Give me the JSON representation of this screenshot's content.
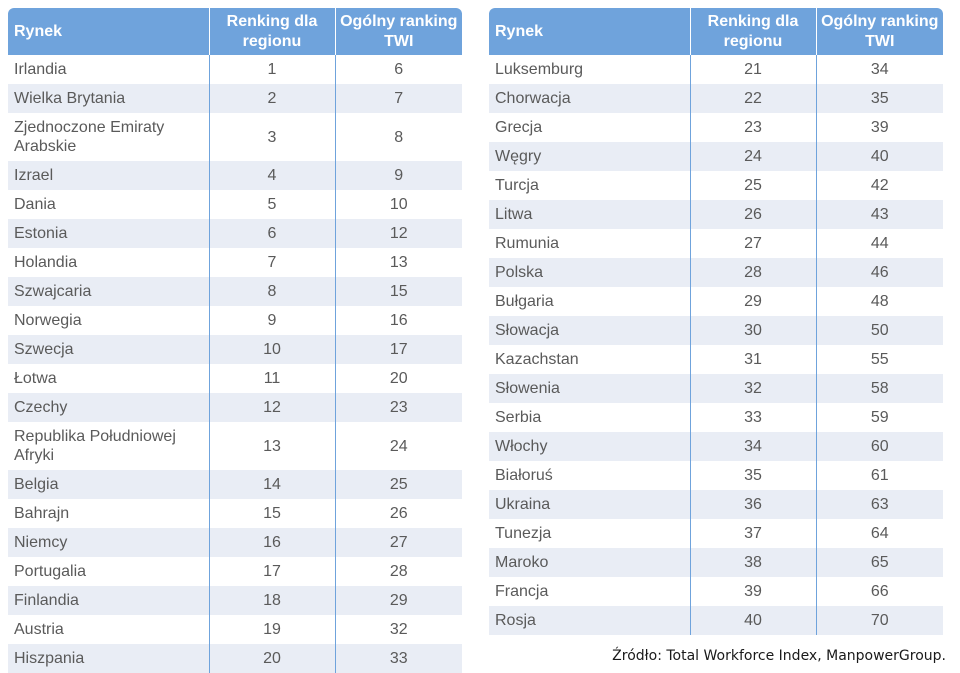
{
  "headers": [
    "Rynek",
    "Renking dla regionu",
    "Ogólny ranking TWI"
  ],
  "left_rows": [
    {
      "market": "Irlandia",
      "region": "1",
      "twi": "6"
    },
    {
      "market": "Wielka Brytania",
      "region": "2",
      "twi": "7"
    },
    {
      "market": "Zjednoczone Emiraty Arabskie",
      "region": "3",
      "twi": "8"
    },
    {
      "market": "Izrael",
      "region": "4",
      "twi": "9"
    },
    {
      "market": "Dania",
      "region": "5",
      "twi": "10"
    },
    {
      "market": "Estonia",
      "region": "6",
      "twi": "12"
    },
    {
      "market": "Holandia",
      "region": "7",
      "twi": "13"
    },
    {
      "market": "Szwajcaria",
      "region": "8",
      "twi": "15"
    },
    {
      "market": "Norwegia",
      "region": "9",
      "twi": "16"
    },
    {
      "market": "Szwecja",
      "region": "10",
      "twi": "17"
    },
    {
      "market": "Łotwa",
      "region": "11",
      "twi": "20"
    },
    {
      "market": "Czechy",
      "region": "12",
      "twi": "23"
    },
    {
      "market": "Republika Południowej Afryki",
      "region": "13",
      "twi": "24"
    },
    {
      "market": "Belgia",
      "region": "14",
      "twi": "25"
    },
    {
      "market": "Bahrajn",
      "region": "15",
      "twi": "26"
    },
    {
      "market": "Niemcy",
      "region": "16",
      "twi": "27"
    },
    {
      "market": "Portugalia",
      "region": "17",
      "twi": "28"
    },
    {
      "market": "Finlandia",
      "region": "18",
      "twi": "29"
    },
    {
      "market": "Austria",
      "region": "19",
      "twi": "32"
    },
    {
      "market": "Hiszpania",
      "region": "20",
      "twi": "33"
    }
  ],
  "right_rows": [
    {
      "market": "Luksemburg",
      "region": "21",
      "twi": "34"
    },
    {
      "market": "Chorwacja",
      "region": "22",
      "twi": "35"
    },
    {
      "market": "Grecja",
      "region": "23",
      "twi": "39"
    },
    {
      "market": "Węgry",
      "region": "24",
      "twi": "40"
    },
    {
      "market": "Turcja",
      "region": "25",
      "twi": "42"
    },
    {
      "market": "Litwa",
      "region": "26",
      "twi": "43"
    },
    {
      "market": "Rumunia",
      "region": "27",
      "twi": "44"
    },
    {
      "market": "Polska",
      "region": "28",
      "twi": "46"
    },
    {
      "market": "Bułgaria",
      "region": "29",
      "twi": "48"
    },
    {
      "market": "Słowacja",
      "region": "30",
      "twi": "50"
    },
    {
      "market": "Kazachstan",
      "region": "31",
      "twi": "55"
    },
    {
      "market": "Słowenia",
      "region": "32",
      "twi": "58"
    },
    {
      "market": "Serbia",
      "region": "33",
      "twi": "59"
    },
    {
      "market": "Włochy",
      "region": "34",
      "twi": "60"
    },
    {
      "market": "Białoruś",
      "region": "35",
      "twi": "61"
    },
    {
      "market": "Ukraina",
      "region": "36",
      "twi": "63"
    },
    {
      "market": "Tunezja",
      "region": "37",
      "twi": "64"
    },
    {
      "market": "Maroko",
      "region": "38",
      "twi": "65"
    },
    {
      "market": "Francja",
      "region": "39",
      "twi": "66"
    },
    {
      "market": "Rosja",
      "region": "40",
      "twi": "70"
    }
  ],
  "source": "Źródło: Total Workforce Index, ManpowerGroup."
}
